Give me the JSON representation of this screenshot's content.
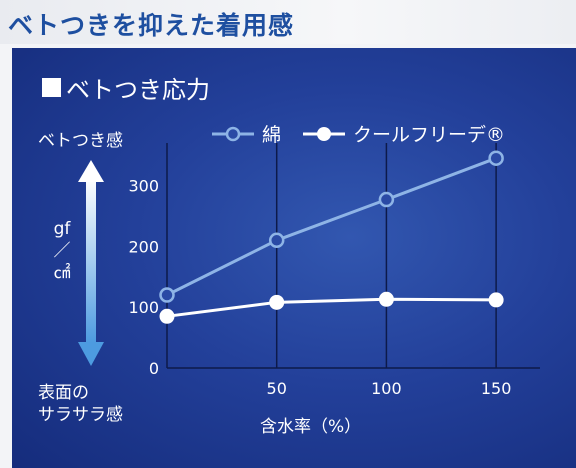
{
  "page_title": "ベトつきを抑えた着用感",
  "panel_title": "ベトつき応力",
  "y_label_top": "ベトつき感",
  "y_label_bottom_line1": "表面の",
  "y_label_bottom_line2": "サラサラ感",
  "unit_label": "gf／㎠",
  "x_axis_label": "含水率（%）",
  "chart_data": {
    "type": "line",
    "x": [
      0,
      50,
      100,
      150
    ],
    "xlim": [
      0,
      170
    ],
    "ylim": [
      0,
      370
    ],
    "x_ticks": [
      0,
      50,
      100,
      150
    ],
    "x_tick_labels": [
      "",
      "50",
      "100",
      "150"
    ],
    "y_ticks": [
      0,
      100,
      200,
      300
    ],
    "y_tick_labels": [
      "0",
      "100",
      "200",
      "300"
    ],
    "grid": "vertical",
    "legend_position": "top",
    "series": [
      {
        "name": "綿",
        "values": [
          120,
          210,
          277,
          345
        ],
        "color": "#8eb4e6",
        "marker": "hollow-circle"
      },
      {
        "name": "クールフリーデ®",
        "values": [
          85,
          108,
          113,
          112
        ],
        "color": "#ffffff",
        "marker": "filled-circle"
      }
    ]
  }
}
